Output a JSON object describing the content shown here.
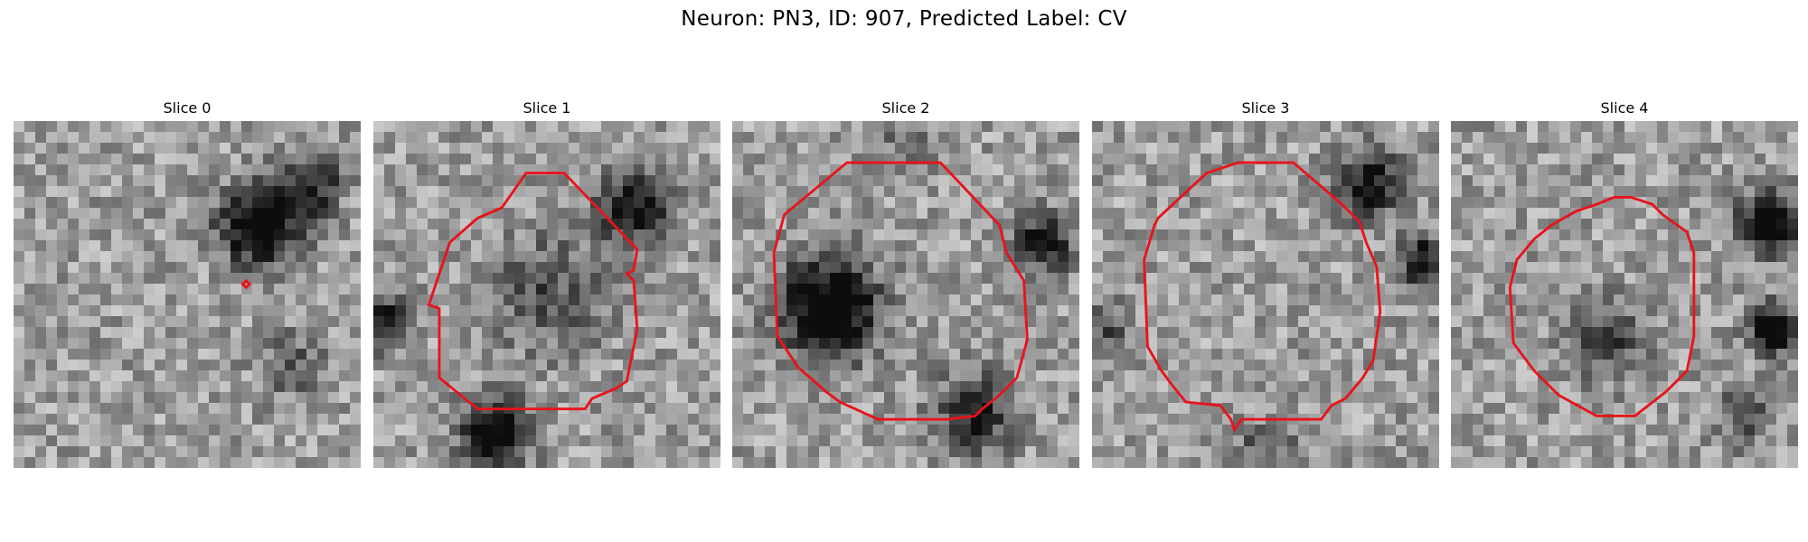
{
  "figure": {
    "title": "Neuron: PN3, ID: 907, Predicted Label: CV",
    "contour_color": "#e8141b"
  },
  "slices": [
    {
      "title": "Slice 0",
      "seed": 11,
      "contour": [
        [
          67,
          46
        ],
        [
          68,
          47
        ],
        [
          67,
          48
        ],
        [
          66,
          47
        ]
      ],
      "dark": [
        [
          71,
          30,
          8,
          0.8
        ],
        [
          86,
          18,
          6,
          0.5
        ],
        [
          80,
          70,
          6,
          0.3
        ]
      ]
    },
    {
      "title": "Slice 1",
      "seed": 23,
      "contour": [
        [
          37,
          25
        ],
        [
          44,
          15
        ],
        [
          55,
          15
        ],
        [
          76,
          37
        ],
        [
          75,
          43
        ],
        [
          73,
          44
        ],
        [
          75,
          46
        ],
        [
          76,
          60
        ],
        [
          73,
          75
        ],
        [
          70,
          77
        ],
        [
          63,
          80
        ],
        [
          61,
          83
        ],
        [
          30,
          83
        ],
        [
          19,
          74
        ],
        [
          19,
          54
        ],
        [
          16,
          53
        ],
        [
          19,
          44
        ],
        [
          22,
          35
        ],
        [
          30,
          28
        ]
      ],
      "dark": [
        [
          75,
          25,
          7,
          0.6
        ],
        [
          3,
          58,
          5,
          0.6
        ],
        [
          35,
          90,
          7,
          0.7
        ],
        [
          50,
          50,
          12,
          0.3
        ]
      ]
    },
    {
      "title": "Slice 2",
      "seed": 37,
      "contour": [
        [
          33,
          12
        ],
        [
          60,
          12
        ],
        [
          77,
          30
        ],
        [
          79,
          38
        ],
        [
          84,
          46
        ],
        [
          85,
          63
        ],
        [
          82,
          74
        ],
        [
          77,
          79
        ],
        [
          72,
          83
        ],
        [
          70,
          85
        ],
        [
          62,
          86
        ],
        [
          42,
          86
        ],
        [
          31,
          81
        ],
        [
          27,
          78
        ],
        [
          19,
          71
        ],
        [
          13,
          62
        ],
        [
          12,
          38
        ],
        [
          15,
          27
        ]
      ],
      "dark": [
        [
          28,
          54,
          10,
          0.8
        ],
        [
          90,
          35,
          6,
          0.6
        ],
        [
          70,
          84,
          8,
          0.5
        ],
        [
          50,
          5,
          6,
          0.2
        ]
      ]
    },
    {
      "title": "Slice 3",
      "seed": 53,
      "contour": [
        [
          33,
          15
        ],
        [
          42,
          12
        ],
        [
          58,
          12
        ],
        [
          72,
          24
        ],
        [
          77,
          29
        ],
        [
          79,
          35
        ],
        [
          82,
          42
        ],
        [
          83,
          55
        ],
        [
          81,
          69
        ],
        [
          78,
          74
        ],
        [
          73,
          80
        ],
        [
          69,
          82
        ],
        [
          66,
          86
        ],
        [
          43,
          86
        ],
        [
          41,
          89
        ],
        [
          40,
          86
        ],
        [
          37,
          82
        ],
        [
          27,
          81
        ],
        [
          23,
          76
        ],
        [
          20,
          72
        ],
        [
          16,
          65
        ],
        [
          15,
          40
        ],
        [
          18,
          30
        ],
        [
          19,
          28
        ]
      ],
      "dark": [
        [
          80,
          18,
          7,
          0.6
        ],
        [
          95,
          40,
          5,
          0.6
        ],
        [
          50,
          95,
          6,
          0.3
        ],
        [
          5,
          60,
          5,
          0.3
        ]
      ]
    },
    {
      "title": "Slice 4",
      "seed": 71,
      "contour": [
        [
          29,
          30
        ],
        [
          36,
          26
        ],
        [
          42,
          24
        ],
        [
          47,
          22
        ],
        [
          52,
          22
        ],
        [
          58,
          24
        ],
        [
          61,
          27
        ],
        [
          68,
          32
        ],
        [
          70,
          38
        ],
        [
          70,
          62
        ],
        [
          68,
          72
        ],
        [
          62,
          78
        ],
        [
          53,
          85
        ],
        [
          42,
          85
        ],
        [
          31,
          79
        ],
        [
          24,
          72
        ],
        [
          18,
          64
        ],
        [
          17,
          48
        ],
        [
          19,
          40
        ],
        [
          24,
          34
        ]
      ],
      "dark": [
        [
          92,
          30,
          6,
          0.8
        ],
        [
          93,
          60,
          5,
          0.7
        ],
        [
          45,
          63,
          8,
          0.35
        ],
        [
          85,
          85,
          6,
          0.3
        ]
      ]
    }
  ]
}
